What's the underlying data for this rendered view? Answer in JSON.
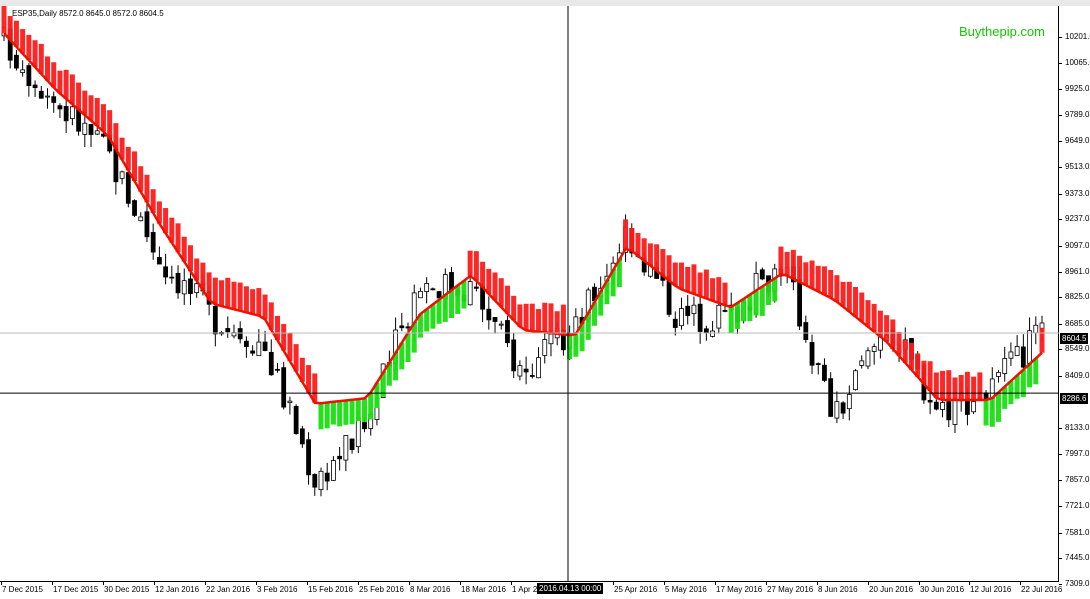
{
  "symbol_info": "ESP35,Daily  8572.0 8645.0 8572.0 8604.5",
  "watermark": "Buythepip.com",
  "current_price_tag": "8604.5",
  "cursor_price_tag": "8286.6",
  "cursor_time_tag": "2016.04.13 00:00",
  "colors": {
    "background": "#ffffff",
    "bull_candle": "#ffffff",
    "bear_candle": "#000000",
    "indicator_down": "#ff1a1a",
    "indicator_up": "#17e00f",
    "moving_average": "#ee1100",
    "watermark": "#12c800"
  },
  "price_axis": {
    "labels": [
      "10201.0",
      "10065.0",
      "9925.0",
      "9789.0",
      "9649.0",
      "9513.0",
      "9373.0",
      "9237.0",
      "9097.0",
      "8961.0",
      "8825.0",
      "8685.0",
      "8549.0",
      "8409.0",
      "8133.0",
      "7997.0",
      "7857.0",
      "7721.0",
      "7581.0",
      "7445.0",
      "7309.0"
    ]
  },
  "time_axis": {
    "labels": [
      "7 Dec 2015",
      "17 Dec 2015",
      "30 Dec 2015",
      "12 Jan 2016",
      "22 Jan 2016",
      "3 Feb 2016",
      "15 Feb 2016",
      "25 Feb 2016",
      "8 Mar 2016",
      "18 Mar 2016",
      "1 Apr 2016",
      "13 Apr 2016",
      "25 Apr 2016",
      "5 May 2016",
      "17 May 2016",
      "27 May 2016",
      "8 Jun 2016",
      "20 Jun 2016",
      "30 Jun 2016",
      "12 Jul 2016",
      "22 Jul 2016"
    ]
  },
  "chart_data": {
    "type": "candlestick",
    "symbol": "ESP35",
    "timeframe": "Daily",
    "last_ohlc": {
      "open": 8572.0,
      "high": 8645.0,
      "low": 8572.0,
      "close": 8604.5
    },
    "y_range": [
      7309.0,
      10201.0
    ],
    "grid": false,
    "cursor": {
      "date": "2016.04.13 00:00",
      "price": 8286.6
    },
    "current_price": 8604.5,
    "x": [
      "7 Dec 2015",
      "17 Dec 2015",
      "30 Dec 2015",
      "12 Jan 2016",
      "22 Jan 2016",
      "3 Feb 2016",
      "15 Feb 2016",
      "25 Feb 2016",
      "8 Mar 2016",
      "18 Mar 2016",
      "1 Apr 2016",
      "13 Apr 2016",
      "25 Apr 2016",
      "5 May 2016",
      "17 May 2016",
      "27 May 2016",
      "8 Jun 2016",
      "20 Jun 2016",
      "30 Jun 2016",
      "12 Jul 2016",
      "22 Jul 2016"
    ],
    "close_approx": [
      10150,
      9830,
      9560,
      9000,
      8700,
      8550,
      7830,
      8130,
      8880,
      8850,
      8390,
      8620,
      9150,
      8690,
      8700,
      8980,
      8150,
      8650,
      8210,
      8300,
      8604.5
    ],
    "series": [
      {
        "name": "trend_line",
        "values": [
          10190,
          9890,
          9650,
          9180,
          8760,
          8690,
          8230,
          8260,
          8700,
          8910,
          8620,
          8590,
          9060,
          8840,
          8740,
          8920,
          8780,
          8560,
          8250,
          8250,
          8500
        ]
      }
    ]
  }
}
